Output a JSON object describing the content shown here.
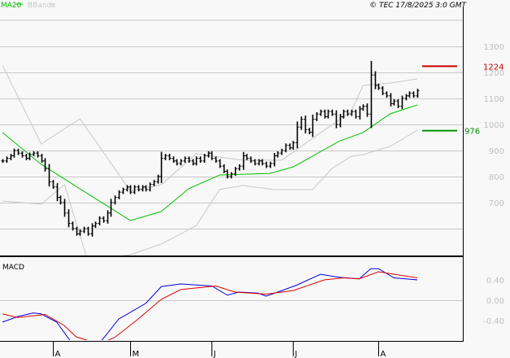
{
  "legend": {
    "ma_label": "MA20",
    "bbands_label": "BBands"
  },
  "copyright": "© TEC 17/8/2025 3:0 GMT",
  "colors": {
    "ma": "#00c000",
    "bands": "#c8c8c8",
    "bars": "#000000",
    "macd": "#0000e0",
    "signal": "#e00000",
    "resistance": "#cc0000",
    "support": "#009000",
    "axis_text": "#c0c0c0"
  },
  "chart_data": [
    {
      "type": "ohlc",
      "title": "",
      "ylim": [
        520,
        1400
      ],
      "yticks": [
        {
          "v": 1300,
          "label": "1300"
        },
        {
          "v": 1200,
          "label": "1200"
        },
        {
          "v": 1100,
          "label": "1100"
        },
        {
          "v": 1000,
          "label": "1000"
        },
        {
          "v": 900,
          "label": "900"
        },
        {
          "v": 800,
          "label": "800"
        },
        {
          "v": 700,
          "label": "700"
        },
        {
          "v": 600,
          "label": ""
        }
      ],
      "closes": [
        860,
        870,
        880,
        900,
        890,
        880,
        870,
        885,
        890,
        880,
        860,
        830,
        780,
        760,
        720,
        700,
        660,
        620,
        600,
        580,
        590,
        600,
        580,
        610,
        620,
        640,
        630,
        660,
        700,
        720,
        740,
        750,
        760,
        740,
        760,
        750,
        760,
        750,
        770,
        780,
        800,
        870,
        880,
        870,
        860,
        850,
        860,
        870,
        860,
        850,
        870,
        860,
        880,
        890,
        870,
        860,
        840,
        820,
        800,
        810,
        830,
        840,
        880,
        870,
        860,
        850,
        860,
        850,
        840,
        850,
        880,
        890,
        900,
        920,
        910,
        930,
        990,
        1020,
        980,
        970,
        1020,
        1040,
        1050,
        1030,
        1050,
        1040,
        1000,
        1030,
        1050,
        1040,
        1050,
        1030,
        1060,
        1070,
        1040,
        1190,
        1150,
        1140,
        1120,
        1110,
        1080,
        1090,
        1070,
        1100,
        1110,
        1120,
        1110,
        1130
      ],
      "ma20": [
        [
          0,
          969
        ],
        [
          10,
          847
        ],
        [
          20,
          753
        ],
        [
          33,
          631
        ],
        [
          41,
          666
        ],
        [
          48,
          753
        ],
        [
          56,
          806
        ],
        [
          69,
          812
        ],
        [
          75,
          837
        ],
        [
          87,
          937
        ],
        [
          93,
          969
        ],
        [
          100,
          1041
        ],
        [
          107,
          1075
        ]
      ],
      "upper_band": [
        [
          0,
          1228
        ],
        [
          10,
          925
        ],
        [
          20,
          1022
        ],
        [
          26,
          894
        ],
        [
          33,
          744
        ],
        [
          41,
          769
        ],
        [
          50,
          888
        ],
        [
          56,
          875
        ],
        [
          62,
          863
        ],
        [
          72,
          863
        ],
        [
          80,
          947
        ],
        [
          90,
          1050
        ],
        [
          93,
          1150
        ],
        [
          100,
          1159
        ],
        [
          107,
          1175
        ]
      ],
      "lower_band": [
        [
          0,
          706
        ],
        [
          10,
          694
        ],
        [
          16,
          769
        ],
        [
          22,
          478
        ],
        [
          33,
          500
        ],
        [
          41,
          541
        ],
        [
          50,
          612
        ],
        [
          56,
          750
        ],
        [
          62,
          766
        ],
        [
          70,
          750
        ],
        [
          76,
          750
        ],
        [
          80,
          750
        ],
        [
          85,
          831
        ],
        [
          90,
          878
        ],
        [
          93,
          884
        ],
        [
          100,
          916
        ],
        [
          107,
          978
        ]
      ],
      "levels": [
        {
          "value": 1224,
          "label": "1224",
          "kind": "resistance"
        },
        {
          "value": 976,
          "label": "976",
          "kind": "support"
        }
      ]
    },
    {
      "type": "line",
      "title": "MACD",
      "ylim": [
        -0.8,
        0.8
      ],
      "yticks": [
        {
          "v": 0.4,
          "label": "0.40"
        },
        {
          "v": 0,
          "label": "0.00"
        },
        {
          "v": -0.4,
          "label": "-0.40"
        }
      ],
      "series": [
        {
          "name": "MACD",
          "points": [
            [
              0,
              -0.43
            ],
            [
              4,
              -0.32
            ],
            [
              8,
              -0.25
            ],
            [
              10,
              -0.27
            ],
            [
              14,
              -0.43
            ],
            [
              19,
              -0.96
            ],
            [
              21,
              -0.99
            ],
            [
              25,
              -0.85
            ],
            [
              30,
              -0.37
            ],
            [
              37,
              -0.06
            ],
            [
              41,
              0.27
            ],
            [
              46,
              0.32
            ],
            [
              54,
              0.28
            ],
            [
              58,
              0.1
            ],
            [
              61,
              0.16
            ],
            [
              66,
              0.14
            ],
            [
              68,
              0.08
            ],
            [
              71,
              0.16
            ],
            [
              76,
              0.3
            ],
            [
              82,
              0.51
            ],
            [
              87,
              0.45
            ],
            [
              92,
              0.42
            ],
            [
              95,
              0.62
            ],
            [
              97,
              0.62
            ],
            [
              101,
              0.44
            ],
            [
              107,
              0.4
            ]
          ]
        },
        {
          "name": "Signal",
          "points": [
            [
              0,
              -0.27
            ],
            [
              4,
              -0.34
            ],
            [
              11,
              -0.28
            ],
            [
              16,
              -0.5
            ],
            [
              19,
              -0.72
            ],
            [
              25,
              -0.86
            ],
            [
              29,
              -0.73
            ],
            [
              35,
              -0.37
            ],
            [
              41,
              0.02
            ],
            [
              46,
              0.21
            ],
            [
              55,
              0.28
            ],
            [
              60,
              0.16
            ],
            [
              68,
              0.12
            ],
            [
              75,
              0.19
            ],
            [
              83,
              0.4
            ],
            [
              88,
              0.44
            ],
            [
              92,
              0.42
            ],
            [
              97,
              0.56
            ],
            [
              107,
              0.44
            ]
          ]
        }
      ]
    }
  ],
  "xaxis": {
    "ticks": [
      {
        "i": 13,
        "label": "A"
      },
      {
        "i": 33,
        "label": "M"
      },
      {
        "i": 54,
        "label": "J"
      },
      {
        "i": 75,
        "label": "J"
      },
      {
        "i": 97,
        "label": "A"
      }
    ]
  }
}
